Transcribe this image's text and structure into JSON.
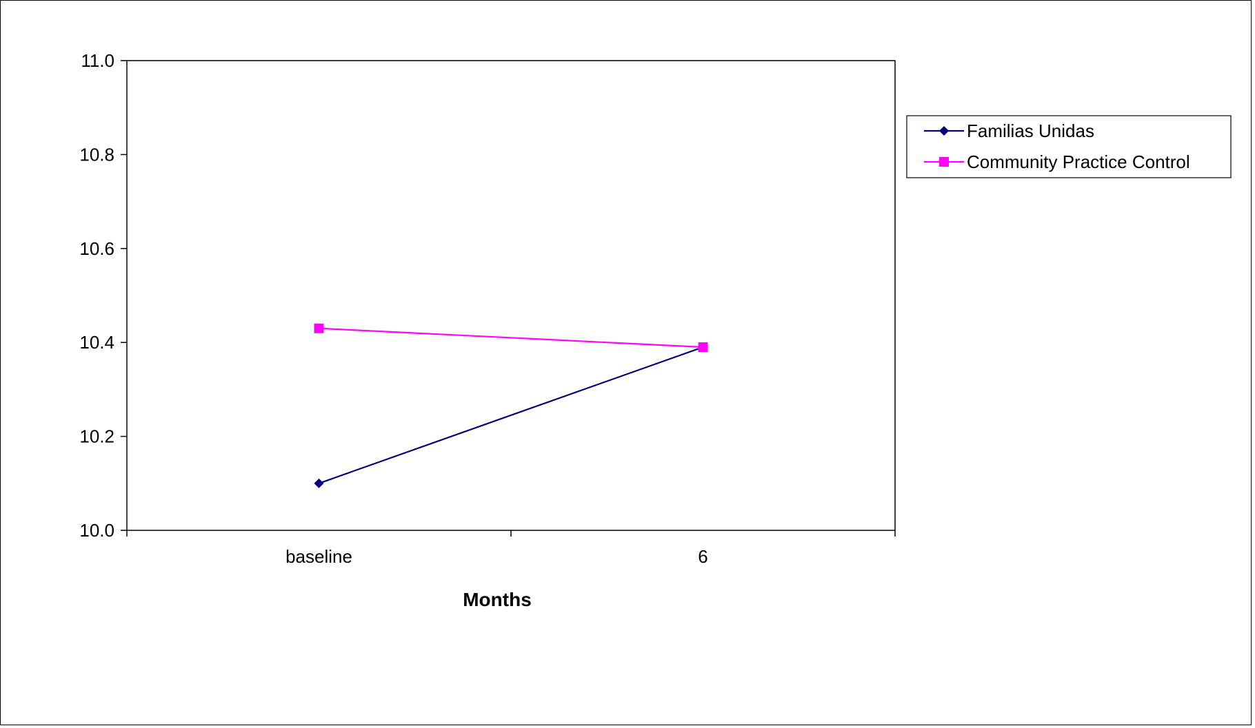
{
  "chart_data": {
    "type": "line",
    "title": "",
    "xlabel": "Months",
    "ylabel": "",
    "categories": [
      "baseline",
      "6"
    ],
    "ylim": [
      10.0,
      11.0
    ],
    "yticks": [
      10.0,
      10.2,
      10.4,
      10.6,
      10.8,
      11.0
    ],
    "ytick_labels": [
      "10.0",
      "10.2",
      "10.4",
      "10.6",
      "10.8",
      "11.0"
    ],
    "grid": false,
    "legend_position": "right",
    "series": [
      {
        "name": "Familias Unidas",
        "values": [
          10.1,
          10.39
        ],
        "color": "#000080",
        "marker": "diamond"
      },
      {
        "name": "Community Practice Control",
        "values": [
          10.43,
          10.39
        ],
        "color": "#FF00FF",
        "marker": "square"
      }
    ]
  }
}
